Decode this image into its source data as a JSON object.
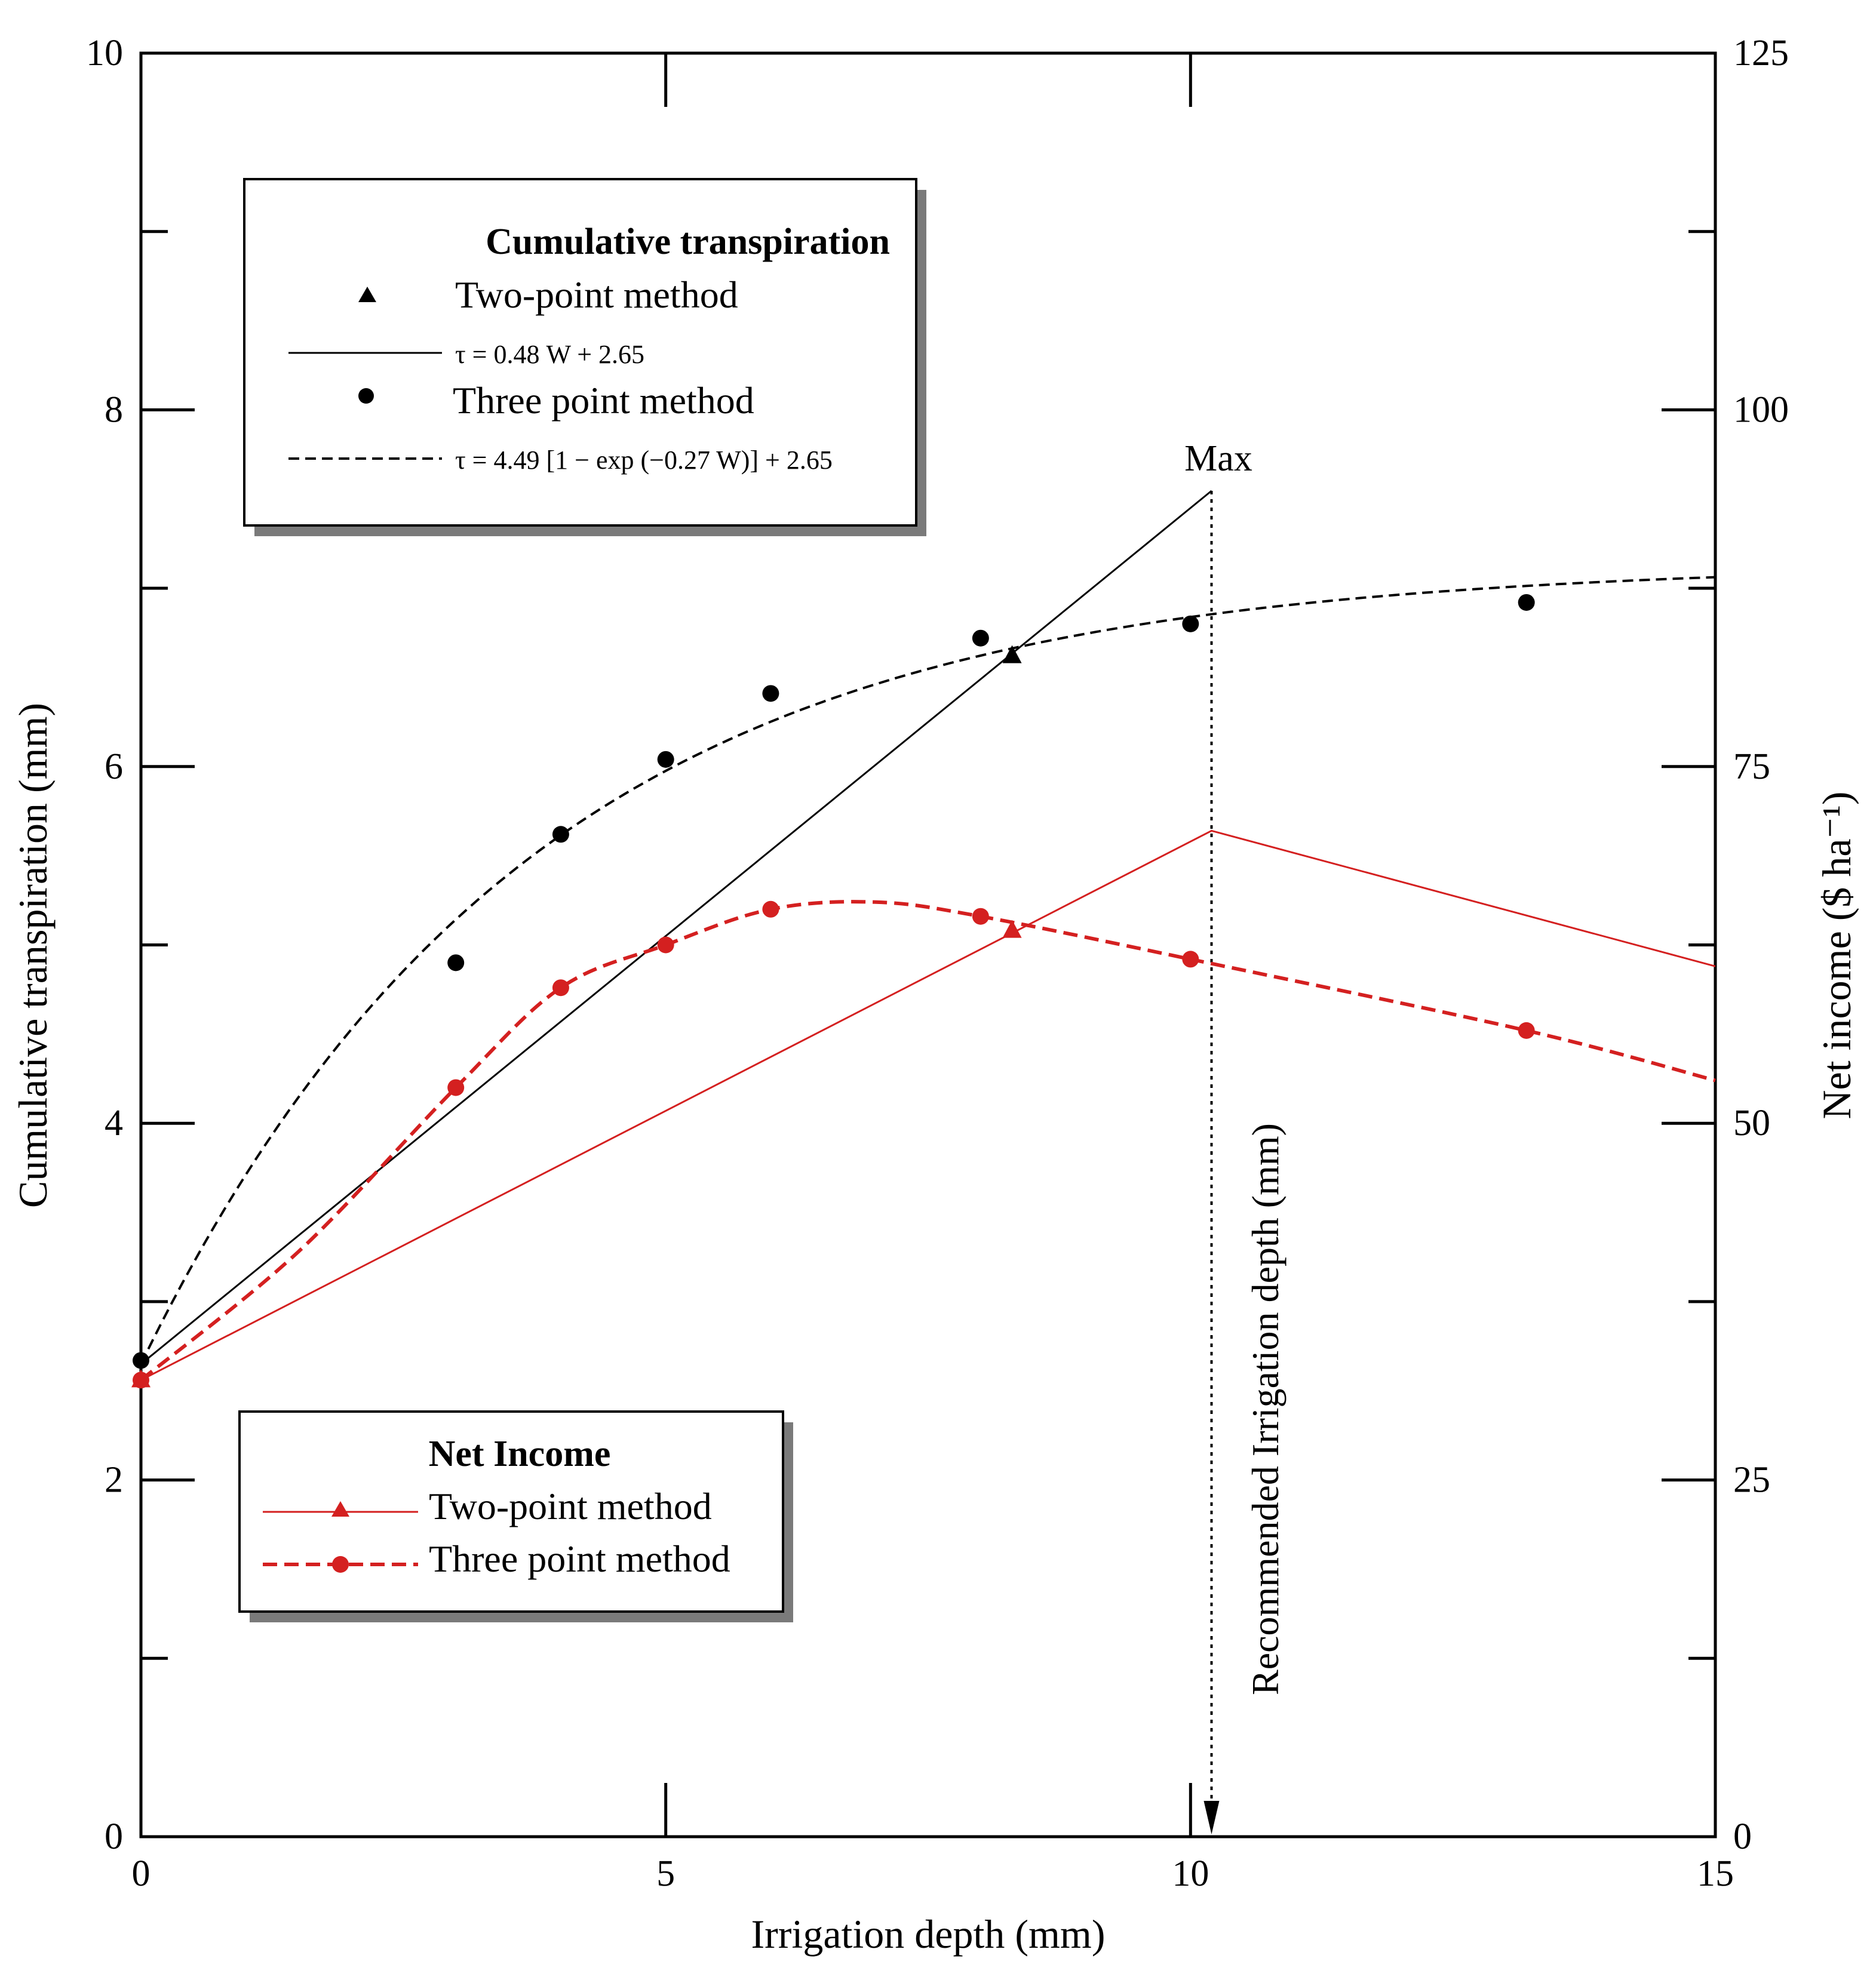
{
  "chart_data": {
    "type": "line",
    "xlabel": "Irrigation depth (mm)",
    "ylabel_left": "Cumulative transpiration (mm)",
    "ylabel_right": "Net income ($ ha⁻¹)",
    "xlim": [
      0,
      15
    ],
    "ylim_left": [
      0,
      10
    ],
    "ylim_right": [
      0,
      125
    ],
    "x_ticks": [
      "0",
      "5",
      "10",
      "15"
    ],
    "y_left_ticks": [
      "0",
      "2",
      "4",
      "6",
      "8",
      "10"
    ],
    "y_right_ticks": [
      "0",
      "25",
      "50",
      "75",
      "100",
      "125"
    ],
    "transpiration": {
      "legend_title": "Cumulative transpiration",
      "two_point_label": "Two-point method",
      "two_point_points": [
        {
          "x": 8.3,
          "y": 6.62
        }
      ],
      "linear_fit_label": "τ = 0.48 W + 2.65",
      "linear_fit": {
        "slope": 0.48,
        "intercept": 2.65,
        "x_end": 10.2
      },
      "three_point_label": "Three point method",
      "three_point_points": [
        {
          "x": 0,
          "y": 2.67
        },
        {
          "x": 3,
          "y": 4.9
        },
        {
          "x": 4,
          "y": 5.62
        },
        {
          "x": 5,
          "y": 6.04
        },
        {
          "x": 6,
          "y": 6.41
        },
        {
          "x": 8,
          "y": 6.72
        },
        {
          "x": 10,
          "y": 6.8
        },
        {
          "x": 13.2,
          "y": 6.92
        }
      ],
      "exp_fit_label": "τ = 4.49 [1 − exp (−0.27 W)] + 2.65",
      "exp_fit": {
        "a": 4.49,
        "k": 0.27,
        "c": 2.65
      }
    },
    "net_income": {
      "legend_title": "Net Income",
      "two_point_label": "Two-point method",
      "two_point_line": [
        {
          "x": 0,
          "y": 32
        },
        {
          "x": 10.2,
          "y": 70.5
        },
        {
          "x": 15,
          "y": 61
        }
      ],
      "two_point_points": [
        {
          "x": 0,
          "y": 32
        },
        {
          "x": 8.3,
          "y": 63.5
        }
      ],
      "three_point_label": "Three point method",
      "three_point_line": [
        {
          "x": 0,
          "y": 32
        },
        {
          "x": 1.5,
          "y": 41
        },
        {
          "x": 3,
          "y": 52.5
        },
        {
          "x": 4,
          "y": 59.5
        },
        {
          "x": 5,
          "y": 62.5
        },
        {
          "x": 6,
          "y": 65
        },
        {
          "x": 7,
          "y": 65.5
        },
        {
          "x": 8,
          "y": 64.5
        },
        {
          "x": 10,
          "y": 61.5
        },
        {
          "x": 13.2,
          "y": 56.5
        },
        {
          "x": 15,
          "y": 53
        }
      ],
      "three_point_points": [
        {
          "x": 0,
          "y": 32
        },
        {
          "x": 3,
          "y": 52.5
        },
        {
          "x": 4,
          "y": 59.5
        },
        {
          "x": 5,
          "y": 62.5
        },
        {
          "x": 6,
          "y": 65
        },
        {
          "x": 8,
          "y": 64.5
        },
        {
          "x": 10,
          "y": 61.5
        },
        {
          "x": 13.2,
          "y": 56.5
        }
      ]
    },
    "annotations": {
      "max_label": "Max",
      "max_x": 10.2,
      "recommended_label": "Recommended Irrigation depth (mm)"
    }
  },
  "colors": {
    "black": "#000000",
    "red": "#d42020",
    "shadow": "#7a7a7a"
  }
}
